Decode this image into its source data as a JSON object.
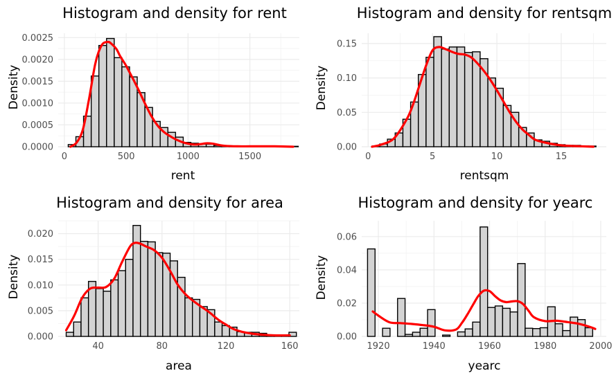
{
  "chart_data": [
    {
      "type": "histogram",
      "title": "Histogram and density for rent",
      "xlabel": "rent",
      "ylabel": "Density",
      "xlim": [
        -50,
        1900
      ],
      "ylim": [
        0,
        0.0026
      ],
      "x_ticks": [
        0,
        500,
        1000,
        1500
      ],
      "x_tick_labels": [
        "0",
        "500",
        "1000",
        "1500"
      ],
      "y_ticks": [
        0,
        0.0005,
        0.001,
        0.0015,
        0.002,
        0.0025
      ],
      "y_tick_labels": [
        "0.0000",
        "0.0005",
        "0.0010",
        "0.0015",
        "0.0020",
        "0.0025"
      ],
      "grid": true,
      "bin_width": 62,
      "bins_start": [
        31,
        93,
        155,
        217,
        279,
        341,
        403,
        465,
        527,
        589,
        651,
        713,
        775,
        837,
        899,
        961,
        1023,
        1085,
        1147,
        1209,
        1271,
        1333,
        1395,
        1457,
        1519,
        1581,
        1643,
        1705,
        1767,
        1829
      ],
      "bar_values": [
        5e-05,
        0.00023,
        0.0007,
        0.00162,
        0.00232,
        0.00248,
        0.00204,
        0.00183,
        0.0016,
        0.00124,
        0.0009,
        0.00058,
        0.00044,
        0.00033,
        0.00022,
        0.0001,
        8e-05,
        6e-05,
        6e-05,
        3e-05,
        2e-05,
        1e-05,
        1e-05,
        1e-05,
        1e-05,
        0.0,
        0.0,
        0.0,
        0.0,
        1e-05
      ],
      "density_x": [
        50,
        100,
        150,
        200,
        250,
        300,
        350,
        380,
        420,
        450,
        500,
        550,
        600,
        650,
        700,
        750,
        800,
        850,
        900,
        950,
        1000,
        1050,
        1100,
        1150,
        1200,
        1250,
        1300,
        1400,
        1500,
        1600,
        1700,
        1850
      ],
      "density_y": [
        0.0,
        0.0001,
        0.0004,
        0.0011,
        0.0019,
        0.00232,
        0.0024,
        0.00236,
        0.00224,
        0.00208,
        0.00185,
        0.00158,
        0.0013,
        0.001,
        0.00072,
        0.0005,
        0.00035,
        0.00025,
        0.00017,
        0.00011,
        7e-05,
        5e-05,
        6e-05,
        8e-05,
        7e-05,
        4e-05,
        2e-05,
        1e-05,
        1e-05,
        1e-05,
        1e-05,
        0.0
      ],
      "bar_fill": "#d3d3d3",
      "bar_stroke": "#000000",
      "density_color": "#ff0000"
    },
    {
      "type": "histogram",
      "title": "Histogram and density for rentsqm",
      "xlabel": "rentsqm",
      "ylabel": "Density",
      "xlim": [
        -0.5,
        18.5
      ],
      "ylim": [
        0,
        0.165
      ],
      "x_ticks": [
        0,
        5,
        10,
        15
      ],
      "x_tick_labels": [
        "0",
        "5",
        "10",
        "15"
      ],
      "y_ticks": [
        0,
        0.05,
        0.1,
        0.15
      ],
      "y_tick_labels": [
        "0.00",
        "0.05",
        "0.10",
        "0.15"
      ],
      "grid": true,
      "bin_width": 0.6,
      "bins_start": [
        0.3,
        0.9,
        1.5,
        2.1,
        2.7,
        3.3,
        3.9,
        4.5,
        5.1,
        5.7,
        6.3,
        6.9,
        7.5,
        8.1,
        8.7,
        9.3,
        9.9,
        10.5,
        11.1,
        11.7,
        12.3,
        12.9,
        13.5,
        14.1,
        14.7,
        15.3,
        15.9,
        16.5,
        17.1
      ],
      "bar_values": [
        0.001,
        0.004,
        0.011,
        0.02,
        0.04,
        0.065,
        0.105,
        0.13,
        0.16,
        0.142,
        0.145,
        0.145,
        0.137,
        0.138,
        0.128,
        0.1,
        0.085,
        0.06,
        0.05,
        0.028,
        0.02,
        0.01,
        0.008,
        0.005,
        0.003,
        0.002,
        0.002,
        0.001,
        0.001
      ],
      "density_x": [
        0.3,
        1,
        2,
        3,
        3.5,
        4,
        4.5,
        5,
        5.5,
        6,
        6.5,
        7,
        7.5,
        8,
        8.5,
        9,
        9.5,
        10,
        10.5,
        11,
        11.5,
        12,
        12.5,
        13,
        14,
        15,
        16,
        17.5
      ],
      "density_y": [
        0.0,
        0.003,
        0.012,
        0.04,
        0.062,
        0.09,
        0.118,
        0.14,
        0.145,
        0.142,
        0.138,
        0.135,
        0.134,
        0.13,
        0.121,
        0.11,
        0.097,
        0.082,
        0.066,
        0.05,
        0.036,
        0.025,
        0.017,
        0.01,
        0.005,
        0.002,
        0.001,
        0.0
      ],
      "bar_fill": "#d3d3d3",
      "bar_stroke": "#000000",
      "density_color": "#ff0000"
    },
    {
      "type": "histogram",
      "title": "Histogram and density for area",
      "xlabel": "area",
      "ylabel": "Density",
      "xlim": [
        15,
        166
      ],
      "ylim": [
        0,
        0.0225
      ],
      "x_ticks": [
        40,
        80,
        120,
        160
      ],
      "x_tick_labels": [
        "40",
        "80",
        "120",
        "160"
      ],
      "y_ticks": [
        0,
        0.005,
        0.01,
        0.015,
        0.02
      ],
      "y_tick_labels": [
        "0.000",
        "0.005",
        "0.010",
        "0.015",
        "0.020"
      ],
      "grid": true,
      "bin_width": 4.65,
      "bins_start": [
        20,
        24.65,
        29.3,
        33.95,
        38.6,
        43.25,
        47.9,
        52.55,
        57.2,
        61.85,
        66.5,
        71.15,
        75.8,
        80.45,
        85.1,
        89.75,
        94.4,
        99.05,
        103.7,
        108.35,
        113,
        117.65,
        122.3,
        126.95,
        131.6,
        136.25,
        140.9,
        145.55,
        150.2,
        154.85,
        159.5
      ],
      "bar_values": [
        0.0008,
        0.0028,
        0.0075,
        0.0107,
        0.0093,
        0.0088,
        0.011,
        0.0128,
        0.015,
        0.0216,
        0.0185,
        0.0184,
        0.0163,
        0.0162,
        0.0147,
        0.0115,
        0.0075,
        0.0072,
        0.0058,
        0.0052,
        0.0028,
        0.0021,
        0.0018,
        0.0009,
        0.0008,
        0.0008,
        0.0006,
        0.0003,
        0.0002,
        0.0001,
        0.0008
      ],
      "density_x": [
        20,
        25,
        30,
        35,
        40,
        45,
        50,
        55,
        60,
        63,
        66,
        70,
        75,
        80,
        85,
        90,
        95,
        100,
        105,
        110,
        115,
        120,
        125,
        130,
        135,
        140,
        150,
        160
      ],
      "density_y": [
        0.0012,
        0.004,
        0.0075,
        0.0093,
        0.0095,
        0.0096,
        0.0112,
        0.0145,
        0.0175,
        0.0182,
        0.0181,
        0.0175,
        0.0168,
        0.0153,
        0.0128,
        0.01,
        0.0081,
        0.0068,
        0.0057,
        0.0046,
        0.0033,
        0.0023,
        0.0014,
        0.0009,
        0.0006,
        0.0004,
        0.0002,
        0.0002
      ],
      "bar_fill": "#d3d3d3",
      "bar_stroke": "#000000",
      "density_color": "#ff0000"
    },
    {
      "type": "histogram",
      "title": "Histogram and density for yearc",
      "xlabel": "yearc",
      "ylabel": "Density",
      "xlim": [
        1914,
        2002
      ],
      "ylim": [
        0,
        0.0695
      ],
      "x_ticks": [
        1920,
        1940,
        1960,
        1980,
        2000
      ],
      "x_tick_labels": [
        "1920",
        "1940",
        "1960",
        "1980",
        "2000"
      ],
      "y_ticks": [
        0,
        0.02,
        0.04,
        0.06
      ],
      "y_tick_labels": [
        "0.00",
        "0.02",
        "0.04",
        "0.06"
      ],
      "grid": true,
      "bin_width": 2.7,
      "bins_start": [
        1916.1,
        1918.8,
        1921.5,
        1924.2,
        1926.9,
        1929.6,
        1932.3,
        1935,
        1937.7,
        1940.4,
        1943.1,
        1945.8,
        1948.5,
        1951.2,
        1953.9,
        1956.6,
        1959.3,
        1962,
        1964.7,
        1967.4,
        1970.1,
        1972.8,
        1975.5,
        1978.2,
        1980.9,
        1983.6,
        1986.3,
        1989,
        1991.7,
        1994.4,
        1997.1
      ],
      "bar_values": [
        0.0526,
        0.0,
        0.0049,
        0.0,
        0.0228,
        0.0012,
        0.0025,
        0.0049,
        0.0161,
        0.0,
        0.0008,
        0.0,
        0.0027,
        0.0045,
        0.0086,
        0.0658,
        0.0174,
        0.0183,
        0.0169,
        0.0147,
        0.0438,
        0.0049,
        0.0047,
        0.0052,
        0.0178,
        0.0076,
        0.0035,
        0.0116,
        0.0101,
        0.0052,
        0.0
      ],
      "density_x": [
        1918,
        1920,
        1924,
        1928,
        1932,
        1936,
        1940,
        1944,
        1948,
        1950,
        1952,
        1954,
        1956,
        1958,
        1960,
        1962,
        1964,
        1966,
        1968,
        1970,
        1972,
        1974,
        1976,
        1980,
        1984,
        1988,
        1992,
        1996,
        1998
      ],
      "density_y": [
        0.015,
        0.0125,
        0.0085,
        0.008,
        0.0075,
        0.0068,
        0.0058,
        0.0036,
        0.0042,
        0.008,
        0.0131,
        0.0189,
        0.0244,
        0.0275,
        0.0272,
        0.0242,
        0.0216,
        0.0206,
        0.021,
        0.0212,
        0.0195,
        0.0155,
        0.0115,
        0.0092,
        0.0094,
        0.0086,
        0.0076,
        0.0058,
        0.0045
      ],
      "bar_fill": "#d3d3d3",
      "bar_stroke": "#000000",
      "density_color": "#ff0000"
    }
  ]
}
